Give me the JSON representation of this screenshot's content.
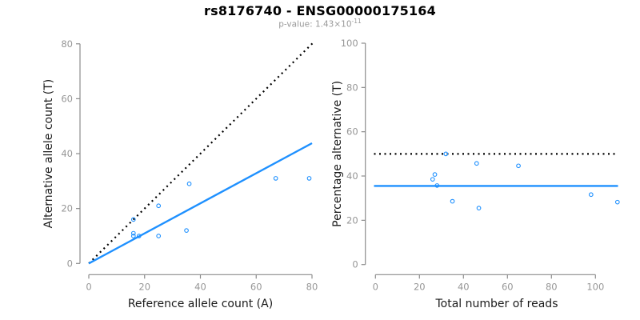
{
  "header": {
    "title": "rs8176740 - ENSG00000175164",
    "pvalue_label": "p-value: 1.43×10",
    "pvalue_exponent": "-11"
  },
  "colors": {
    "accent": "#1E90FF",
    "identity": "#000000",
    "axis": "#8C8C8C",
    "tick_label": "#969696",
    "axis_title": "#1A1A1A",
    "subtitle": "#999999",
    "background": "#FFFFFF"
  },
  "chart_data": [
    {
      "type": "scatter",
      "panel": "left",
      "xlabel": "Reference allele count (A)",
      "ylabel": "Alternative allele count (T)",
      "xlim": [
        0,
        80
      ],
      "ylim": [
        0,
        80
      ],
      "xticks": [
        0,
        20,
        40,
        60,
        80
      ],
      "yticks": [
        0,
        20,
        40,
        60,
        80
      ],
      "grid": false,
      "marker": "open-circle",
      "points": [
        [
          16,
          16
        ],
        [
          16,
          11
        ],
        [
          16,
          10
        ],
        [
          18,
          10
        ],
        [
          25,
          21
        ],
        [
          25,
          10
        ],
        [
          35,
          12
        ],
        [
          36,
          29
        ],
        [
          67,
          31
        ],
        [
          79,
          31
        ]
      ],
      "lines": [
        {
          "name": "identity-line",
          "meaning": "y = x expectation",
          "from": [
            0,
            0
          ],
          "to": [
            80.5,
            80.5
          ],
          "style": "dotted",
          "color": "#000000",
          "width": 2.2
        },
        {
          "name": "fit-line",
          "meaning": "fitted allelic ratio",
          "from": [
            0,
            0
          ],
          "to": [
            80,
            43.8
          ],
          "style": "solid",
          "color": "#1E90FF",
          "width": 2.4
        }
      ]
    },
    {
      "type": "scatter",
      "panel": "right",
      "xlabel": "Total number of reads",
      "ylabel": "Percentage alternative (T)",
      "xlim": [
        0,
        110
      ],
      "ylim": [
        0,
        100
      ],
      "xticks": [
        0,
        20,
        40,
        60,
        80,
        100
      ],
      "yticks": [
        0,
        20,
        40,
        60,
        80,
        100
      ],
      "grid": false,
      "marker": "open-circle",
      "points": [
        [
          32,
          50.0
        ],
        [
          27,
          40.7
        ],
        [
          26,
          38.5
        ],
        [
          28,
          35.7
        ],
        [
          46,
          45.7
        ],
        [
          35,
          28.6
        ],
        [
          47,
          25.5
        ],
        [
          65,
          44.6
        ],
        [
          98,
          31.6
        ],
        [
          110,
          28.2
        ]
      ],
      "lines": [
        {
          "name": "expected-50pct-line",
          "meaning": "50% expectation",
          "y": 50,
          "style": "dotted",
          "color": "#000000",
          "width": 2.2
        },
        {
          "name": "fit-line",
          "meaning": "mean percentage alternative",
          "y": 35.5,
          "style": "solid",
          "color": "#1E90FF",
          "width": 2.4
        }
      ]
    }
  ]
}
